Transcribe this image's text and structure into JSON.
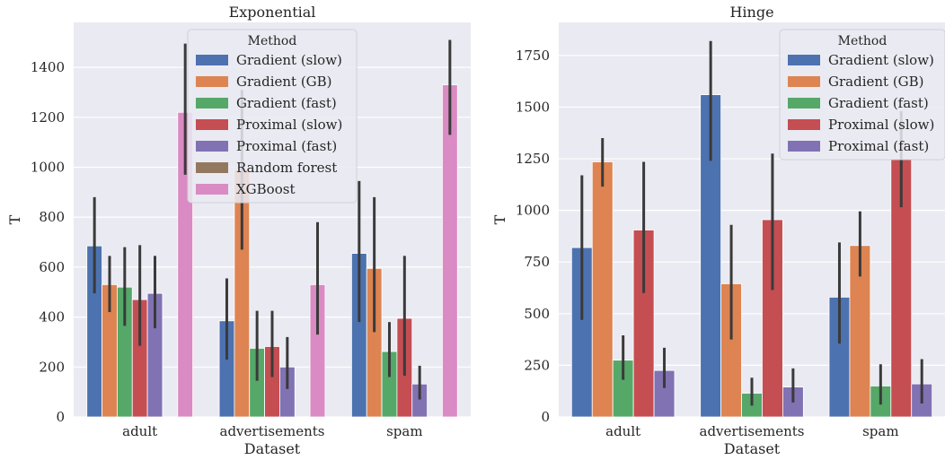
{
  "chart_data": [
    {
      "type": "bar",
      "title": "Exponential",
      "xlabel": "Dataset",
      "ylabel": "T",
      "ylim": [
        0,
        1580
      ],
      "yticks": [
        0,
        200,
        400,
        600,
        800,
        1000,
        1200,
        1400
      ],
      "categories": [
        "adult",
        "advertisements",
        "spam"
      ],
      "grid": true,
      "legend": {
        "title": "Method",
        "placement": "top-center"
      },
      "series": [
        {
          "name": "Gradient (slow)",
          "color": "#4c72b0",
          "values": [
            685,
            385,
            655
          ],
          "err_low": [
            495,
            230,
            380
          ],
          "err_high": [
            880,
            555,
            945
          ]
        },
        {
          "name": "Gradient (GB)",
          "color": "#dd8452",
          "values": [
            530,
            990,
            595
          ],
          "err_low": [
            420,
            670,
            340
          ],
          "err_high": [
            645,
            1310,
            880
          ]
        },
        {
          "name": "Gradient (fast)",
          "color": "#55a868",
          "values": [
            520,
            275,
            262
          ],
          "err_low": [
            365,
            145,
            160
          ],
          "err_high": [
            680,
            425,
            380
          ]
        },
        {
          "name": "Proximal (slow)",
          "color": "#c44e52",
          "values": [
            470,
            282,
            395
          ],
          "err_low": [
            285,
            160,
            165
          ],
          "err_high": [
            688,
            425,
            645
          ]
        },
        {
          "name": "Proximal (fast)",
          "color": "#8172b3",
          "values": [
            495,
            200,
            132
          ],
          "err_low": [
            355,
            112,
            70
          ],
          "err_high": [
            645,
            320,
            205
          ]
        },
        {
          "name": "Random forest",
          "color": "#937860",
          "values": [
            0,
            0,
            0
          ],
          "err_low": [
            0,
            0,
            0
          ],
          "err_high": [
            0,
            0,
            0
          ]
        },
        {
          "name": "XGBoost",
          "color": "#da8bc3",
          "values": [
            1220,
            530,
            1330
          ],
          "err_low": [
            970,
            330,
            1130
          ],
          "err_high": [
            1495,
            780,
            1510
          ]
        }
      ]
    },
    {
      "type": "bar",
      "title": "Hinge",
      "xlabel": "Dataset",
      "ylabel": "T",
      "ylim": [
        0,
        1910
      ],
      "yticks": [
        0,
        250,
        500,
        750,
        1000,
        1250,
        1500,
        1750
      ],
      "categories": [
        "adult",
        "advertisements",
        "spam"
      ],
      "grid": true,
      "legend": {
        "title": "Method",
        "placement": "top-right"
      },
      "series": [
        {
          "name": "Gradient (slow)",
          "color": "#4c72b0",
          "values": [
            820,
            1560,
            580
          ],
          "err_low": [
            470,
            1240,
            355
          ],
          "err_high": [
            1170,
            1820,
            845
          ]
        },
        {
          "name": "Gradient (GB)",
          "color": "#dd8452",
          "values": [
            1235,
            645,
            830
          ],
          "err_low": [
            1115,
            375,
            680
          ],
          "err_high": [
            1350,
            930,
            995
          ]
        },
        {
          "name": "Gradient (fast)",
          "color": "#55a868",
          "values": [
            275,
            115,
            150
          ],
          "err_low": [
            180,
            55,
            60
          ],
          "err_high": [
            395,
            190,
            255
          ]
        },
        {
          "name": "Proximal (slow)",
          "color": "#c44e52",
          "values": [
            905,
            955,
            1250
          ],
          "err_low": [
            600,
            615,
            1015
          ],
          "err_high": [
            1235,
            1275,
            1480
          ]
        },
        {
          "name": "Proximal (fast)",
          "color": "#8172b3",
          "values": [
            225,
            145,
            160
          ],
          "err_low": [
            140,
            70,
            65
          ],
          "err_high": [
            335,
            235,
            280
          ]
        }
      ]
    }
  ]
}
